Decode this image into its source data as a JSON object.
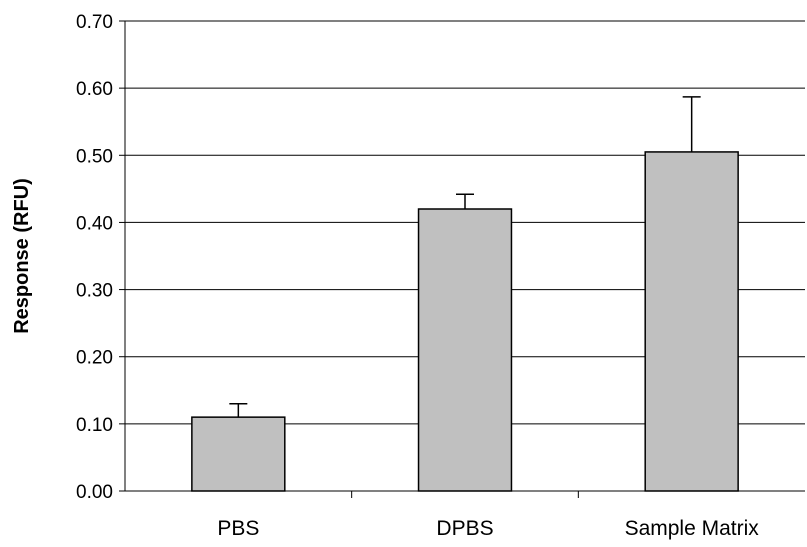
{
  "chart_data": {
    "type": "bar",
    "title": "",
    "xlabel": "",
    "ylabel": "Response (RFU)",
    "categories": [
      "PBS",
      "DPBS",
      "Sample Matrix"
    ],
    "values": [
      0.11,
      0.42,
      0.505
    ],
    "error_upper": [
      0.13,
      0.442,
      0.587
    ],
    "ylim": [
      0.0,
      0.7
    ],
    "yticks": [
      0.0,
      0.1,
      0.2,
      0.3,
      0.4,
      0.5,
      0.6,
      0.7
    ],
    "ytick_labels": [
      "0.00",
      "0.10",
      "0.20",
      "0.30",
      "0.40",
      "0.50",
      "0.60",
      "0.70"
    ],
    "grid": true,
    "legend": "none",
    "colors": {
      "bar_fill": "#c0c0c0",
      "bar_stroke": "#000000",
      "grid": "#000000",
      "axis": "#000000"
    }
  }
}
